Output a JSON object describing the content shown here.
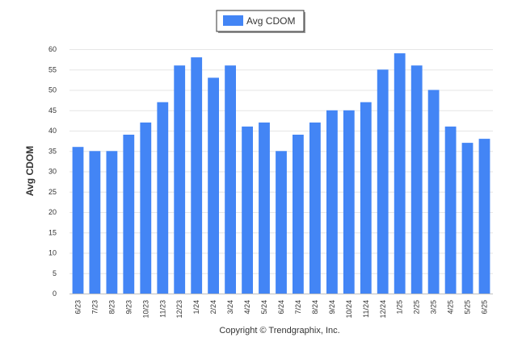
{
  "chart_data": {
    "type": "bar",
    "title": "",
    "xlabel": "",
    "ylabel": "Avg CDOM",
    "ylim": [
      0,
      60
    ],
    "ytick_step": 5,
    "grid": true,
    "legend_position": "top-center",
    "categories": [
      "6/23",
      "7/23",
      "8/23",
      "9/23",
      "10/23",
      "11/23",
      "12/23",
      "1/24",
      "2/24",
      "3/24",
      "4/24",
      "5/24",
      "6/24",
      "7/24",
      "8/24",
      "9/24",
      "10/24",
      "11/24",
      "12/24",
      "1/25",
      "2/25",
      "3/25",
      "4/25",
      "5/25",
      "6/25"
    ],
    "series": [
      {
        "name": "Avg CDOM",
        "color": "#4385f5",
        "values": [
          36,
          35,
          35,
          39,
          42,
          47,
          56,
          58,
          53,
          56,
          41,
          42,
          35,
          39,
          42,
          45,
          45,
          47,
          55,
          59,
          56,
          50,
          41,
          37,
          38
        ]
      }
    ]
  },
  "legend": {
    "label": "Avg CDOM"
  },
  "credits": {
    "text": "Copyright © Trendgraphix, Inc."
  }
}
